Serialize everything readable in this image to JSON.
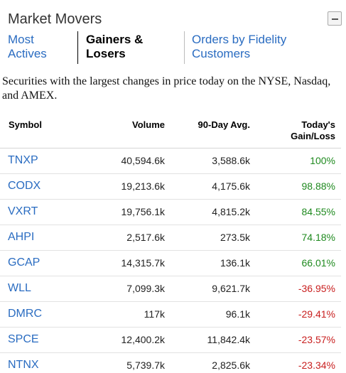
{
  "header": {
    "title": "Market Movers",
    "collapse_icon": "minus-icon"
  },
  "tabs": [
    {
      "label_line1": "Most",
      "label_line2": "Actives",
      "active": false
    },
    {
      "label_line1": "Gainers &",
      "label_line2": "Losers",
      "active": true
    },
    {
      "label_line1": "Orders by Fidelity",
      "label_line2": "Customers",
      "active": false
    }
  ],
  "description": "Securities with the largest changes in price today on the NYSE, Nasdaq, and AMEX.",
  "table": {
    "columns": {
      "symbol": "Symbol",
      "volume": "Volume",
      "avg": "90-Day Avg.",
      "change_line1": "Today's",
      "change_line2": "Gain/Loss"
    },
    "rows": [
      {
        "symbol": "TNXP",
        "volume": "40,594.6k",
        "avg": "3,588.6k",
        "change": "100%"
      },
      {
        "symbol": "CODX",
        "volume": "19,213.6k",
        "avg": "4,175.6k",
        "change": "98.88%"
      },
      {
        "symbol": "VXRT",
        "volume": "19,756.1k",
        "avg": "4,815.2k",
        "change": "84.55%"
      },
      {
        "symbol": "AHPI",
        "volume": "2,517.6k",
        "avg": "273.5k",
        "change": "74.18%"
      },
      {
        "symbol": "GCAP",
        "volume": "14,315.7k",
        "avg": "136.1k",
        "change": "66.01%"
      },
      {
        "symbol": "WLL",
        "volume": "7,099.3k",
        "avg": "9,621.7k",
        "change": "-36.95%"
      },
      {
        "symbol": "DMRC",
        "volume": "117k",
        "avg": "96.1k",
        "change": "-29.41%"
      },
      {
        "symbol": "SPCE",
        "volume": "12,400.2k",
        "avg": "11,842.4k",
        "change": "-23.57%"
      },
      {
        "symbol": "NTNX",
        "volume": "5,739.7k",
        "avg": "2,825.6k",
        "change": "-23.34%"
      }
    ]
  },
  "colors": {
    "link": "#2a6cc1",
    "gain": "#1f8a1f",
    "loss": "#c81e1e"
  }
}
